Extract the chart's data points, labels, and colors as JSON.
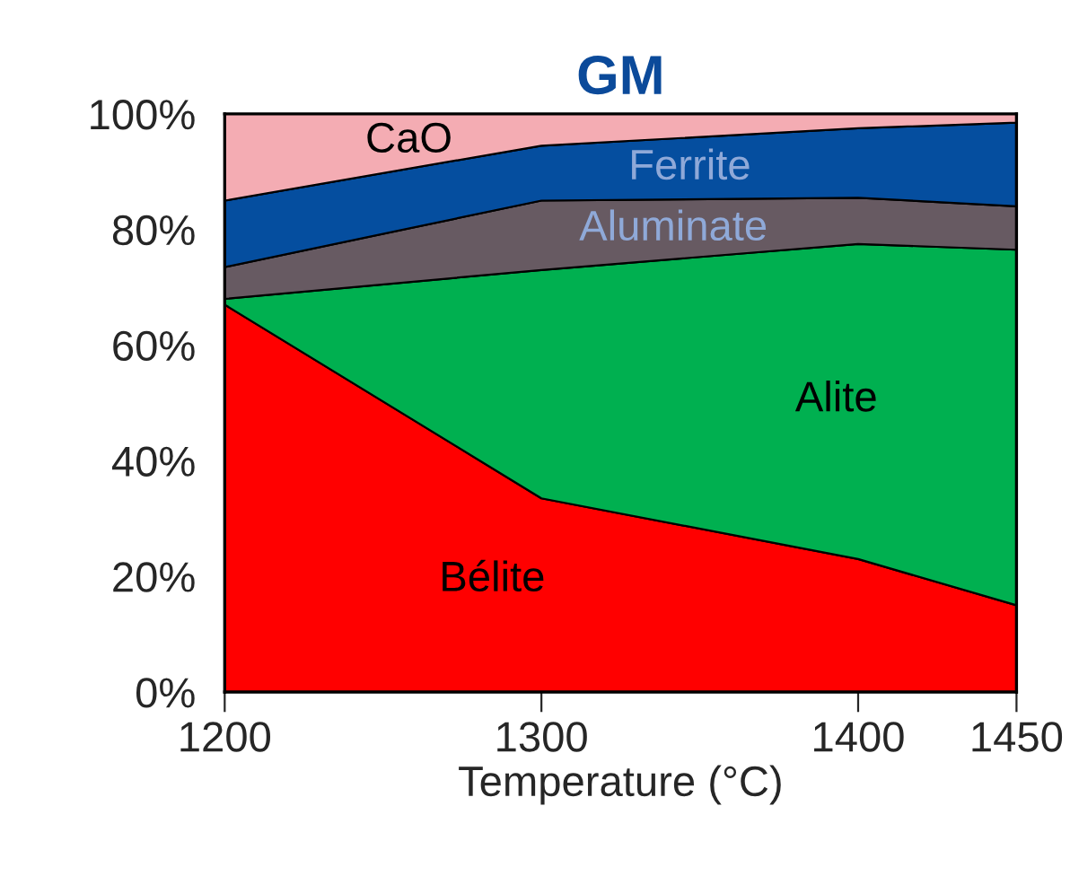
{
  "chart_data": {
    "type": "area",
    "stacked": true,
    "title": "GM",
    "xlabel": "Temperature (°C)",
    "x": [
      1200,
      1300,
      1400,
      1450
    ],
    "series": [
      {
        "name": "Bélite",
        "color": "#ff0000",
        "values": [
          67,
          33.5,
          23,
          15
        ]
      },
      {
        "name": "Alite",
        "color": "#00b050",
        "values": [
          1,
          39.5,
          54.5,
          61.5
        ]
      },
      {
        "name": "Aluminate",
        "color": "#675a62",
        "values": [
          5.5,
          12,
          8,
          7.5
        ]
      },
      {
        "name": "Ferrite",
        "color": "#054e9f",
        "values": [
          11.5,
          9.5,
          12,
          14.5
        ]
      },
      {
        "name": "CaO",
        "color": "#f4acb3",
        "values": [
          15,
          5.5,
          2.5,
          1.5
        ]
      }
    ],
    "xlim": [
      1200,
      1450
    ],
    "xticks": [
      1200,
      1300,
      1400,
      1450
    ],
    "ylim": [
      0,
      100
    ],
    "yticks": [
      {
        "value": 0,
        "label": "0%"
      },
      {
        "value": 20,
        "label": "20%"
      },
      {
        "value": 40,
        "label": "40%"
      },
      {
        "value": 60,
        "label": "60%"
      },
      {
        "value": 80,
        "label": "80%"
      },
      {
        "value": 100,
        "label": "100%"
      }
    ],
    "legend": false
  }
}
